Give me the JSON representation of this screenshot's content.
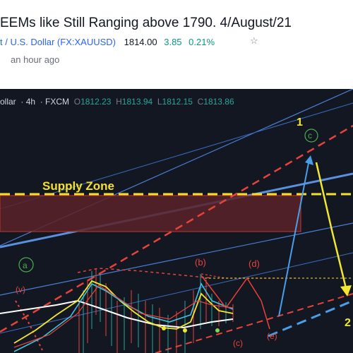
{
  "idea": {
    "title": "EEMs like Still Ranging above 1790. 4/August/21",
    "symbol_name": "t / U.S. Dollar",
    "ticker": "FX:XAUUSD",
    "price": "1814.00",
    "change": "3.85",
    "change_pct": "0.21%",
    "published": "an hour ago"
  },
  "chart": {
    "legend": {
      "name": "ollar",
      "interval": "4h",
      "source": "FXCM",
      "o_label": "O",
      "o": "1812.23",
      "h_label": "H",
      "h": "1813.94",
      "l_label": "L",
      "l": "1812.15",
      "c_label": "C",
      "c": "1813.86"
    },
    "annotations": {
      "supply_zone": "Supply Zone",
      "wave_1": "1",
      "wave_c_circle": "c",
      "wave_a_circle": "a",
      "wave_v": "(v)",
      "wave_b": "(b)",
      "wave_d": "(d)",
      "wave_c": "(c)",
      "wave_e": "(e)",
      "wave_2": "2"
    },
    "colors": {
      "background": "#131722",
      "supply_line": "#f5e12a",
      "supply_zone": "#5a2228",
      "blue_lines": "#4a7fd4",
      "red_dashed": "#e8433a",
      "yellow_projection": "#f2e830",
      "blue_projection": "#4a9ee8"
    }
  }
}
